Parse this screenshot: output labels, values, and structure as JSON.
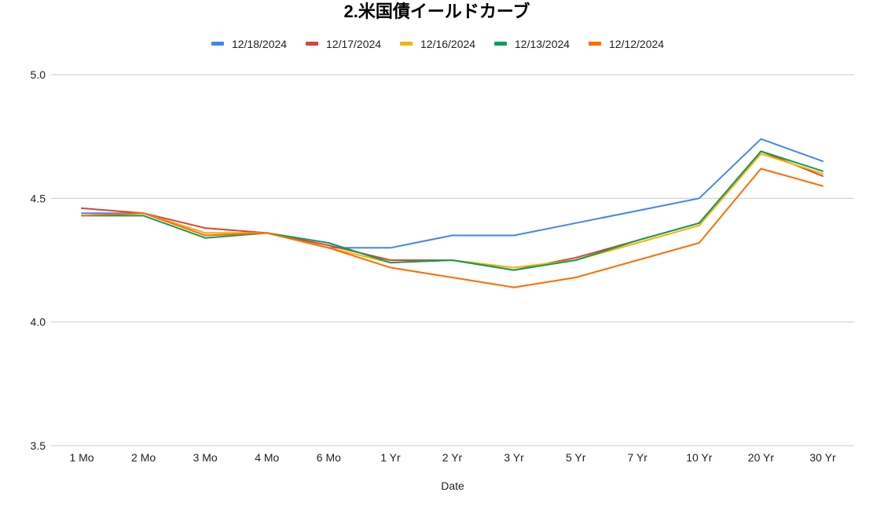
{
  "chart_data": {
    "type": "line",
    "title": "2.米国債イールドカーブ",
    "xlabel": "Date",
    "ylabel": "",
    "categories": [
      "1 Mo",
      "2 Mo",
      "3 Mo",
      "4 Mo",
      "6 Mo",
      "1 Yr",
      "2 Yr",
      "3 Yr",
      "5 Yr",
      "7 Yr",
      "10 Yr",
      "20 Yr",
      "30 Yr"
    ],
    "ylim": [
      3.5,
      5.0
    ],
    "yticks": [
      3.5,
      4.0,
      4.5,
      5.0
    ],
    "ytick_labels": [
      "3.5",
      "4.0",
      "4.5",
      "5.0"
    ],
    "grid": true,
    "legend_position": "top",
    "series": [
      {
        "name": "12/18/2024",
        "color": "#4285f4",
        "values": [
          4.44,
          4.44,
          4.36,
          4.36,
          4.3,
          4.3,
          4.35,
          4.35,
          4.4,
          4.45,
          4.5,
          4.74,
          4.65
        ]
      },
      {
        "name": "12/17/2024",
        "color": "#db4437",
        "values": [
          4.46,
          4.44,
          4.38,
          4.36,
          4.31,
          4.25,
          4.25,
          4.21,
          4.26,
          4.33,
          4.4,
          4.69,
          4.59
        ]
      },
      {
        "name": "12/16/2024",
        "color": "#f4b400",
        "values": [
          4.43,
          4.44,
          4.36,
          4.36,
          4.3,
          4.24,
          4.25,
          4.22,
          4.25,
          4.32,
          4.39,
          4.68,
          4.6
        ]
      },
      {
        "name": "12/13/2024",
        "color": "#0f9d58",
        "values": [
          4.43,
          4.43,
          4.34,
          4.36,
          4.32,
          4.24,
          4.25,
          4.21,
          4.25,
          4.33,
          4.4,
          4.69,
          4.61
        ]
      },
      {
        "name": "12/12/2024",
        "color": "#ff6d01",
        "values": [
          4.43,
          4.44,
          4.35,
          4.36,
          4.3,
          4.22,
          4.18,
          4.14,
          4.18,
          4.25,
          4.32,
          4.62,
          4.55
        ]
      }
    ]
  }
}
